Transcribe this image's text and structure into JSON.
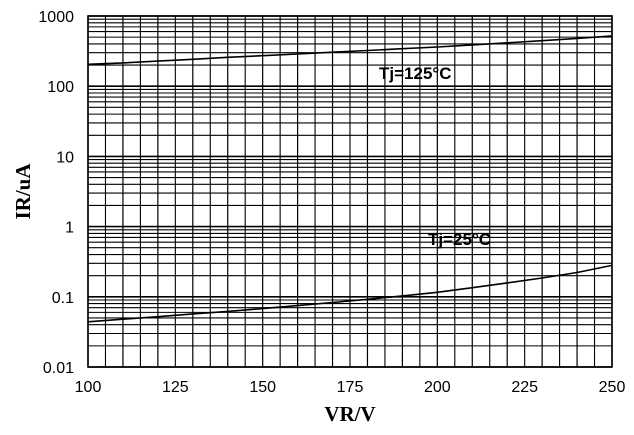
{
  "chart_data": {
    "type": "line",
    "title": "",
    "xlabel": "VR/V",
    "ylabel": "IR/uA",
    "xlim": [
      100,
      250
    ],
    "ylim": [
      0.01,
      1000
    ],
    "yscale": "log",
    "grid": true,
    "x_ticks": [
      "100",
      "125",
      "150",
      "175",
      "200",
      "225",
      "250"
    ],
    "y_ticks": [
      "1000",
      "100",
      "10",
      "1",
      "0.1",
      "0.01"
    ],
    "series": [
      {
        "name": "Tj=125°C",
        "x": [
          100,
          110,
          120,
          130,
          140,
          150,
          160,
          170,
          180,
          190,
          200,
          210,
          220,
          230,
          240,
          250
        ],
        "y": [
          205,
          215,
          228,
          242,
          258,
          272,
          288,
          305,
          322,
          342,
          362,
          388,
          415,
          445,
          480,
          520
        ]
      },
      {
        "name": "Tj=25°C",
        "x": [
          100,
          110,
          120,
          130,
          140,
          150,
          160,
          170,
          180,
          190,
          200,
          210,
          220,
          230,
          240,
          250
        ],
        "y": [
          0.044,
          0.048,
          0.052,
          0.057,
          0.062,
          0.068,
          0.075,
          0.083,
          0.092,
          0.103,
          0.116,
          0.135,
          0.158,
          0.185,
          0.222,
          0.28
        ]
      }
    ],
    "annotations": [
      "Tj=125°C",
      "Tj=25°C"
    ]
  }
}
